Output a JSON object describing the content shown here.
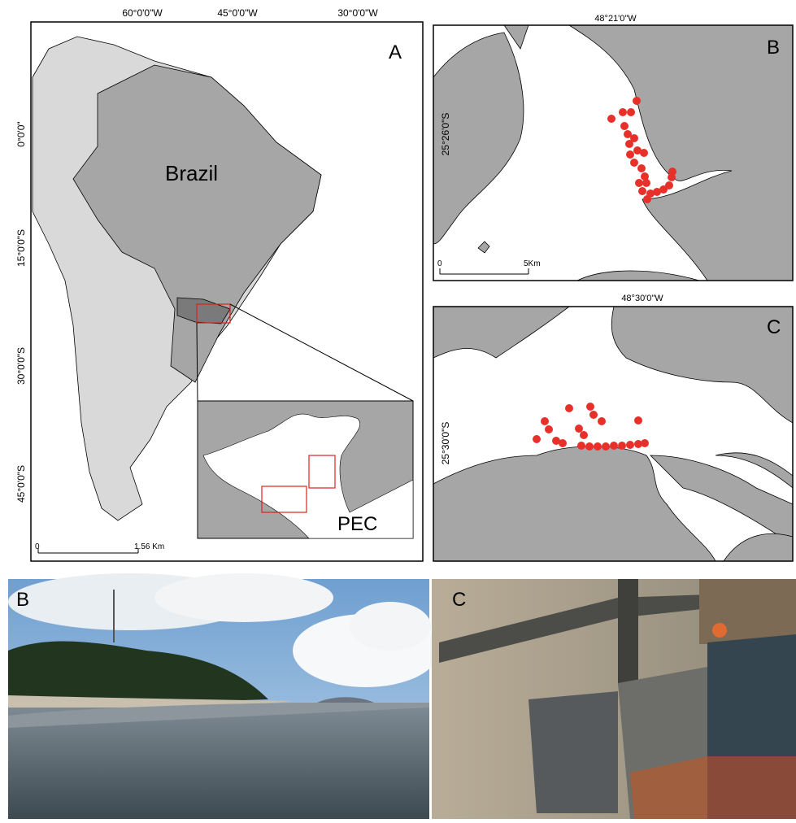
{
  "panel_a": {
    "label": "A",
    "top_ticks": [
      "60°0'0\"W",
      "45°0'0\"W",
      "30°0'0\"W"
    ],
    "left_ticks": [
      "0°0'0\"",
      "15°0'0\"S",
      "30°0'0\"S",
      "45°0'0\"S"
    ],
    "country": "Brazil",
    "inset": "PEC",
    "scale": [
      "0",
      "1.56 Km"
    ]
  },
  "panel_b": {
    "label": "B",
    "top_tick": "48°21'0\"W",
    "left_tick": "25°26'0\"S",
    "scale": [
      "0",
      "5Km"
    ]
  },
  "panel_c": {
    "label": "C",
    "top_tick": "48°30'0\"W",
    "left_tick": "25°30'0\"S"
  },
  "photos": [
    {
      "label": "B"
    },
    {
      "label": "C"
    }
  ]
}
